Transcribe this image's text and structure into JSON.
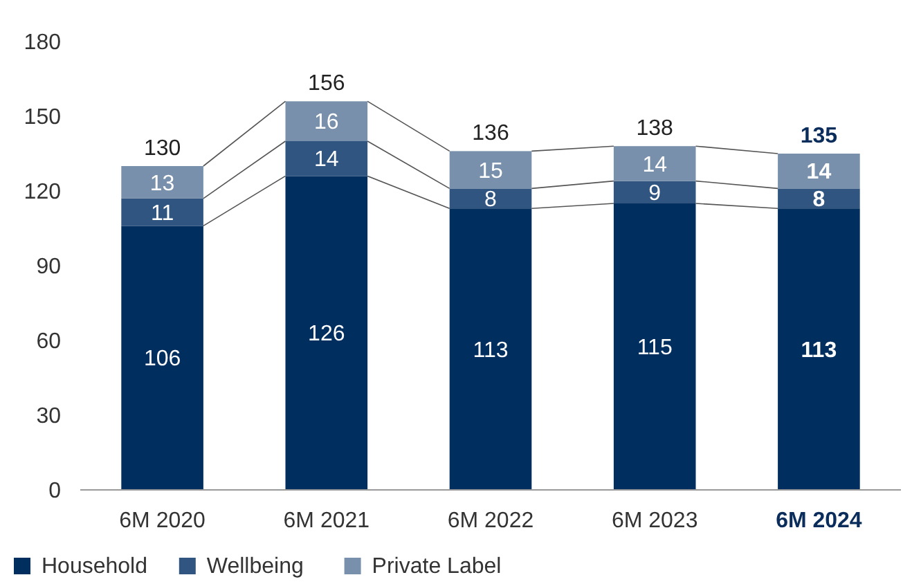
{
  "chart_data": {
    "type": "bar",
    "stacked": true,
    "categories": [
      "6M 2020",
      "6M 2021",
      "6M 2022",
      "6M 2023",
      "6M 2024"
    ],
    "series": [
      {
        "name": "Household",
        "color": "#002f5f",
        "values": [
          106,
          126,
          113,
          115,
          113
        ]
      },
      {
        "name": "Wellbeing",
        "color": "#2f5580",
        "values": [
          11,
          14,
          8,
          9,
          8
        ]
      },
      {
        "name": "Private Label",
        "color": "#7890ab",
        "values": [
          13,
          16,
          15,
          14,
          14
        ]
      }
    ],
    "totals": [
      "130",
      "156",
      "136",
      "138",
      "135"
    ],
    "data_labels": true,
    "ylim": [
      0,
      180
    ],
    "yticks": [
      0,
      30,
      60,
      90,
      120,
      150,
      180
    ],
    "grid": false,
    "legend": "bottom"
  }
}
